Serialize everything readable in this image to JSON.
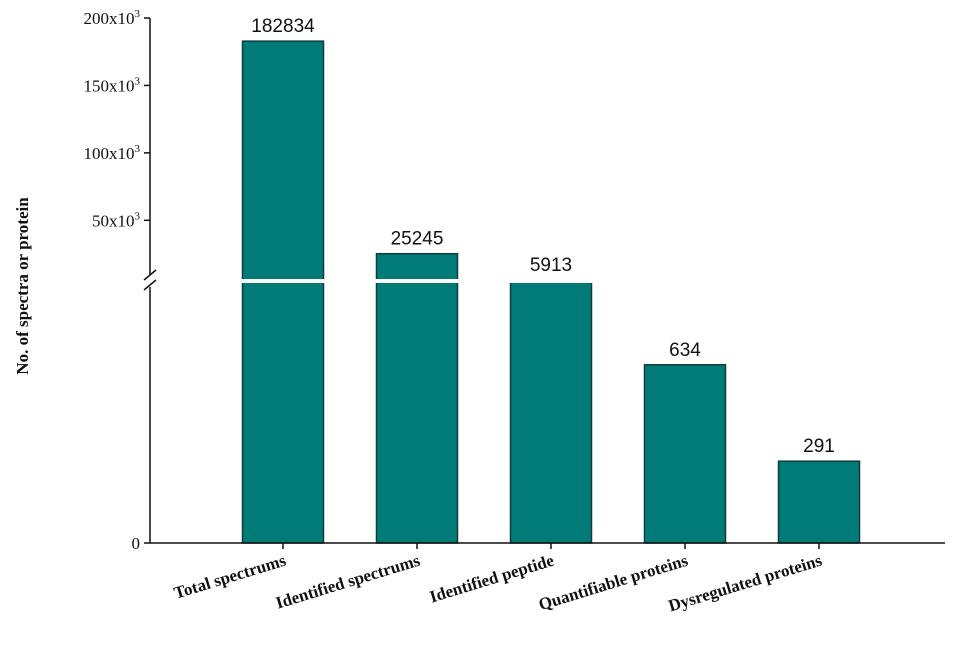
{
  "chart_data": {
    "type": "bar",
    "categories": [
      "Total spectrums",
      "Identified spectrums",
      "Identified peptide",
      "Quantifiable proteins",
      "Dysregulated  proteins"
    ],
    "values": [
      182834,
      25245,
      5913,
      634,
      291
    ],
    "value_labels": [
      "182834",
      "25245",
      "5913",
      "634",
      "291"
    ],
    "ylabel": "No. of spectra or protein",
    "xlabel": "",
    "y_axis": {
      "broken": true,
      "lower_segment_range": [
        0,
        900
      ],
      "upper_segment_range": [
        5000,
        200000
      ],
      "ticks": [
        {
          "value": 0,
          "label": "0"
        },
        {
          "value": 50000,
          "label_base": "50x10",
          "label_exp": "3"
        },
        {
          "value": 100000,
          "label_base": "100x10",
          "label_exp": "3"
        },
        {
          "value": 150000,
          "label_base": "150x10",
          "label_exp": "3"
        },
        {
          "value": 200000,
          "label_base": "200x10",
          "label_exp": "3"
        }
      ]
    },
    "bar_color": "#007b78",
    "bar_border_color": "#0d3d3b",
    "grid": false,
    "legend": "none"
  }
}
